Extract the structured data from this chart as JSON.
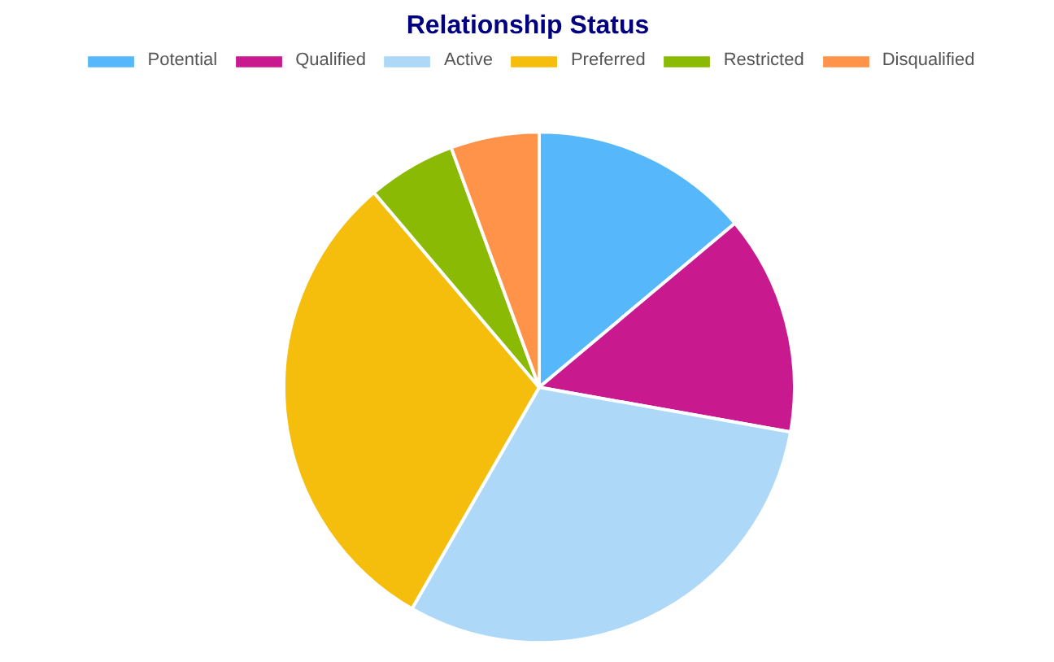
{
  "chart_data": {
    "type": "pie",
    "title": "Relationship Status",
    "categories": [
      "Potential",
      "Qualified",
      "Active",
      "Preferred",
      "Restricted",
      "Disqualified"
    ],
    "values": [
      13.9,
      13.9,
      30.5,
      30.5,
      5.6,
      5.6
    ],
    "colors": [
      "#56b8fb",
      "#c9198f",
      "#aed8f7",
      "#f5bd0c",
      "#8aba03",
      "#fe9349"
    ],
    "legend": "top"
  }
}
